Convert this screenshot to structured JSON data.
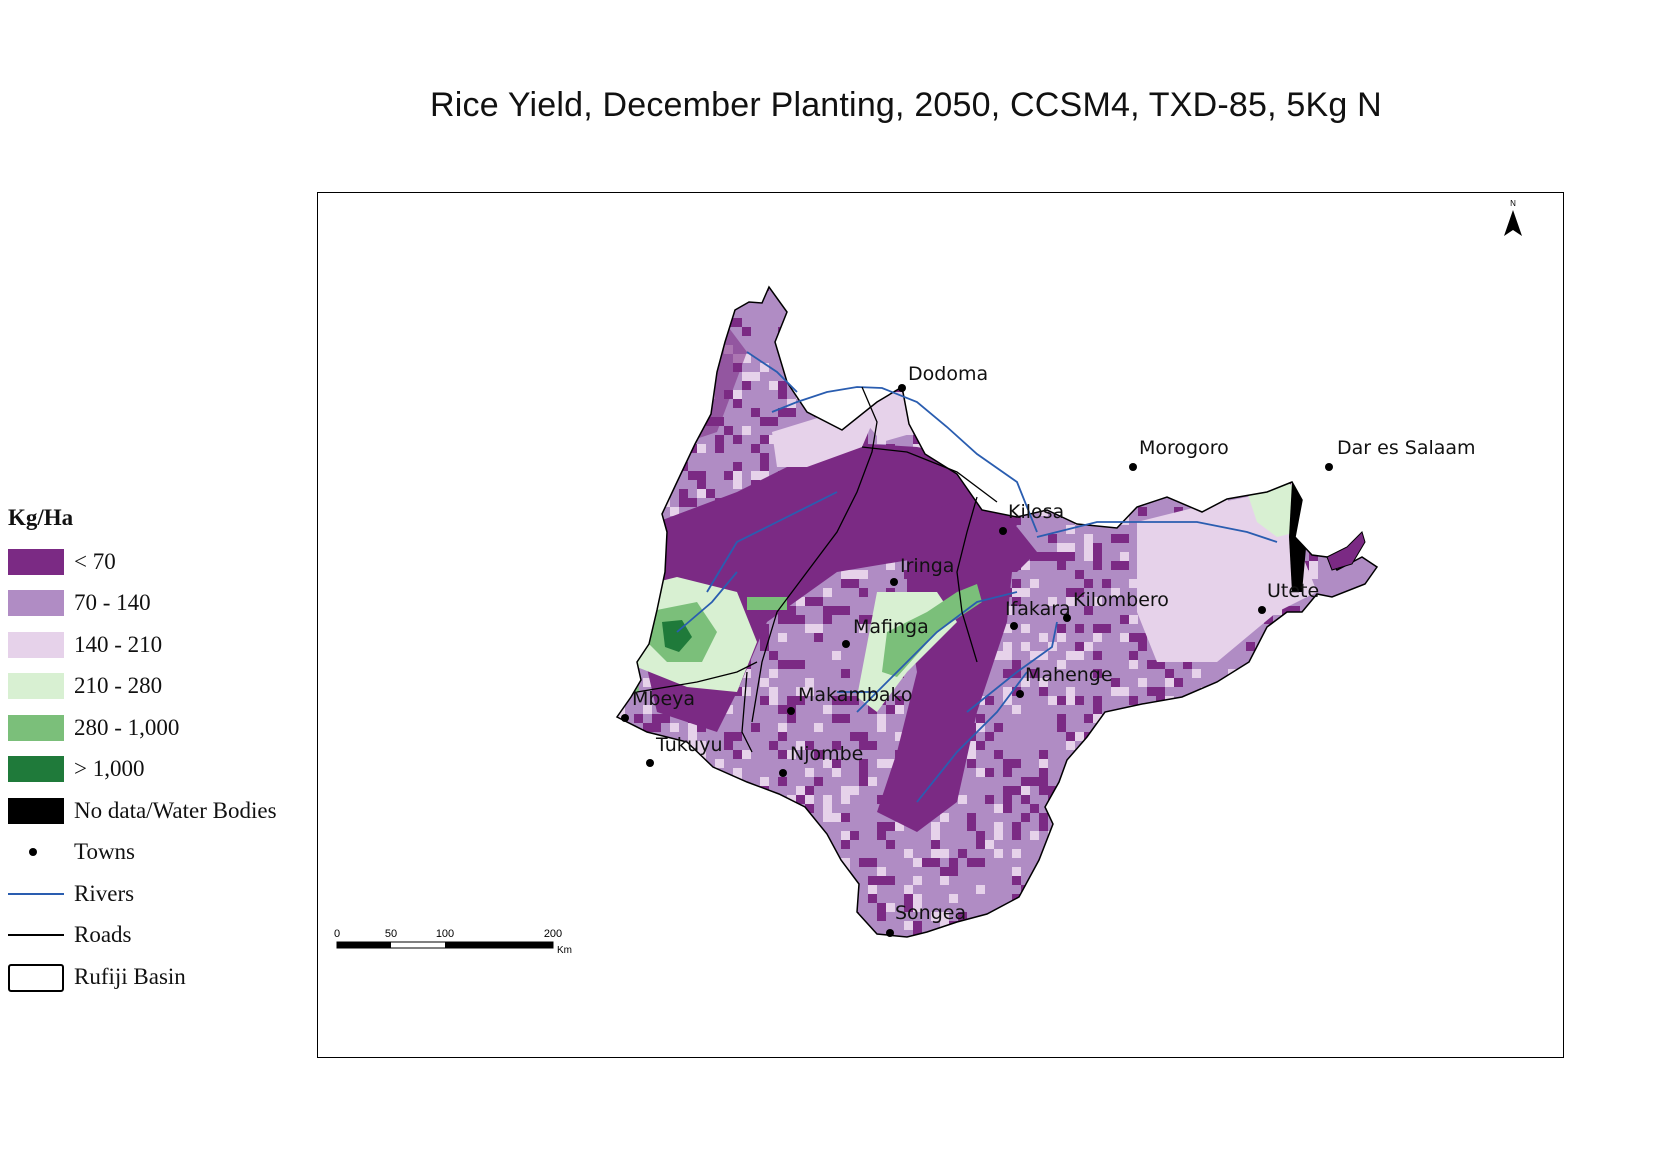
{
  "title": "Rice Yield, December Planting, 2050, CCSM4, TXD-85, 5Kg N",
  "legend": {
    "heading": "Kg/Ha",
    "classes": [
      {
        "label": "< 70",
        "color": "#7b2a84"
      },
      {
        "label": "70 - 140",
        "color": "#b08cc4"
      },
      {
        "label": "140 - 210",
        "color": "#e6d2ea"
      },
      {
        "label": "210 - 280",
        "color": "#d8f0d2"
      },
      {
        "label": "280 - 1,000",
        "color": "#7bbf7a"
      },
      {
        "label": "> 1,000",
        "color": "#1f7a3a"
      },
      {
        "label": "No data/Water Bodies",
        "color": "#000000"
      }
    ],
    "towns_label": "Towns",
    "rivers_label": "Rivers",
    "roads_label": "Roads",
    "basin_label": "Rufiji Basin"
  },
  "north_arrow": {
    "label": "N"
  },
  "scale_bar": {
    "ticks": [
      "0",
      "50",
      "100",
      "200"
    ],
    "unit": "Km"
  },
  "towns": [
    {
      "name": "Dodoma"
    },
    {
      "name": "Morogoro"
    },
    {
      "name": "Dar es Salaam"
    },
    {
      "name": "Kilosa"
    },
    {
      "name": "Iringa"
    },
    {
      "name": "Ifakara"
    },
    {
      "name": "Kilombero"
    },
    {
      "name": "Utete"
    },
    {
      "name": "Mafinga"
    },
    {
      "name": "Mahenge"
    },
    {
      "name": "Mbeya"
    },
    {
      "name": "Makambako"
    },
    {
      "name": "Tukuyu"
    },
    {
      "name": "Njombe"
    },
    {
      "name": "Songea"
    }
  ]
}
